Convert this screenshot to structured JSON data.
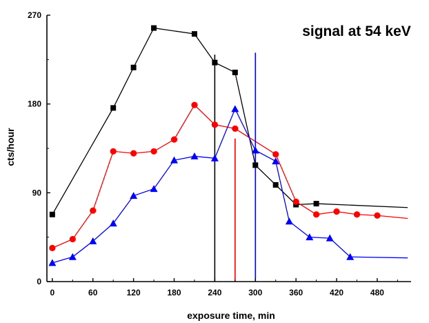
{
  "chart_data": {
    "type": "line",
    "title": "signal at 54 keV",
    "xlabel": "exposure time, min",
    "ylabel": "cts/hour",
    "xlim": [
      -8,
      530
    ],
    "ylim": [
      0,
      270
    ],
    "x_ticks": [
      0,
      60,
      120,
      180,
      240,
      300,
      360,
      420,
      480
    ],
    "y_ticks": [
      0,
      90,
      180,
      270
    ],
    "grid": false,
    "legend": "none",
    "series": [
      {
        "color": "#000000",
        "marker": "square",
        "points": [
          [
            0,
            68
          ],
          [
            90,
            176
          ],
          [
            120,
            217
          ],
          [
            150,
            257
          ],
          [
            210,
            251
          ],
          [
            240,
            222
          ],
          [
            270,
            212
          ],
          [
            300,
            118
          ],
          [
            330,
            98
          ],
          [
            360,
            78
          ],
          [
            390,
            79
          ]
        ],
        "tail": [
          525,
          75
        ]
      },
      {
        "color": "#ff0000",
        "marker": "circle",
        "points": [
          [
            0,
            34
          ],
          [
            30,
            43
          ],
          [
            60,
            72
          ],
          [
            90,
            132
          ],
          [
            120,
            130
          ],
          [
            150,
            132
          ],
          [
            180,
            144
          ],
          [
            210,
            179
          ],
          [
            240,
            159
          ],
          [
            270,
            155
          ],
          [
            330,
            129
          ],
          [
            360,
            81
          ],
          [
            390,
            68
          ],
          [
            420,
            71
          ],
          [
            450,
            68
          ],
          [
            480,
            67
          ]
        ],
        "tail": [
          525,
          64
        ]
      },
      {
        "color": "#0000ff",
        "marker": "triangle",
        "points": [
          [
            0,
            19
          ],
          [
            30,
            25
          ],
          [
            60,
            41
          ],
          [
            90,
            59
          ],
          [
            120,
            87
          ],
          [
            150,
            94
          ],
          [
            180,
            123
          ],
          [
            210,
            127
          ],
          [
            240,
            125
          ],
          [
            270,
            175
          ],
          [
            300,
            133
          ],
          [
            330,
            122
          ],
          [
            350,
            61
          ],
          [
            380,
            45
          ],
          [
            410,
            44
          ],
          [
            440,
            25
          ]
        ],
        "tail": [
          525,
          24
        ]
      }
    ],
    "vlines": [
      {
        "x": 240,
        "y_top": 230,
        "color": "#000000"
      },
      {
        "x": 270,
        "y_top": 145,
        "color": "#ff0000"
      },
      {
        "x": 300,
        "y_top": 232,
        "color": "#0000ff"
      }
    ]
  }
}
